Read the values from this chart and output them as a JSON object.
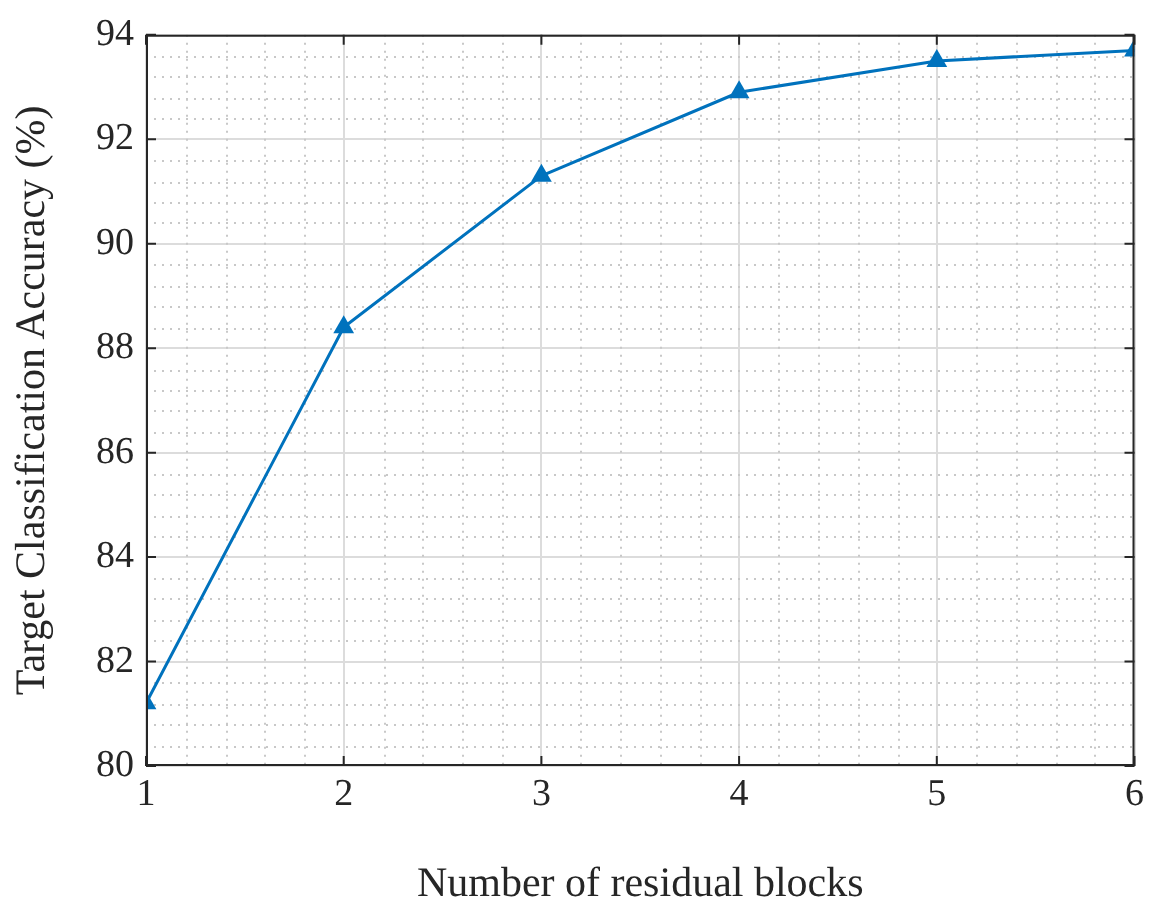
{
  "chart_data": {
    "type": "line",
    "xlabel": "Number of residual blocks",
    "ylabel": "Target Classification Accuracy (%)",
    "x": [
      1,
      2,
      3,
      4,
      5,
      6
    ],
    "series": [
      {
        "color": "#0072bd",
        "values": [
          81.2,
          88.4,
          91.3,
          92.9,
          93.5,
          93.7
        ]
      }
    ],
    "xlim": [
      1,
      6
    ],
    "xticks": [
      1,
      2,
      3,
      4,
      5,
      6
    ],
    "ylim": [
      80,
      94
    ],
    "yticks": [
      80,
      82,
      84,
      86,
      88,
      90,
      92,
      94
    ],
    "grid": true,
    "legend": false,
    "marker": "triangle",
    "line_style": "solid"
  }
}
